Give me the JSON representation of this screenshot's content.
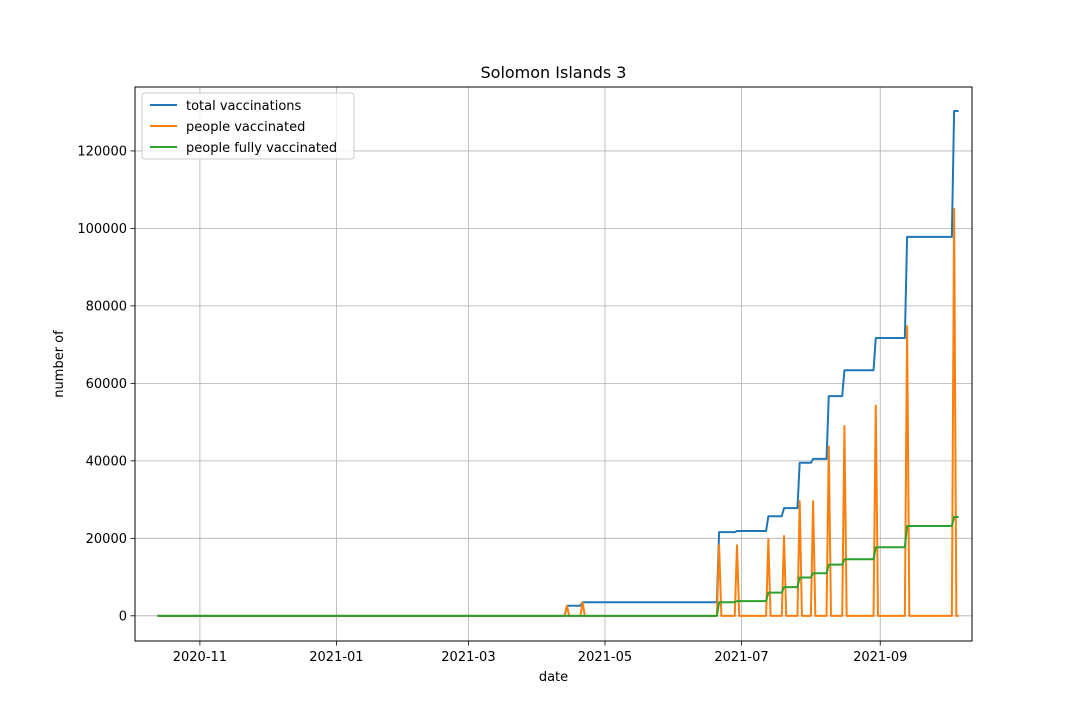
{
  "chart_data": {
    "type": "line",
    "title": "Solomon Islands 3",
    "xlabel": "date",
    "ylabel": "number of",
    "x_type": "date",
    "xlim": [
      "2020-10-03",
      "2021-10-12"
    ],
    "ylim": [
      -6500,
      136500
    ],
    "x_ticks": [
      "2020-11-01",
      "2021-01-01",
      "2021-03-01",
      "2021-05-01",
      "2021-07-01",
      "2021-09-01"
    ],
    "x_tick_labels": [
      "2020-11",
      "2021-01",
      "2021-03",
      "2021-05",
      "2021-07",
      "2021-09"
    ],
    "y_ticks": [
      0,
      20000,
      40000,
      60000,
      80000,
      100000,
      120000
    ],
    "y_tick_labels": [
      "0",
      "20000",
      "40000",
      "60000",
      "80000",
      "100000",
      "120000"
    ],
    "grid": true,
    "legend_position": "upper left",
    "series": [
      {
        "name": "total vaccinations",
        "color": "#1f77b4",
        "points": [
          [
            "2020-10-13",
            0
          ],
          [
            "2021-04-13",
            0
          ],
          [
            "2021-04-14",
            2600
          ],
          [
            "2021-04-20",
            2600
          ],
          [
            "2021-04-21",
            3500
          ],
          [
            "2021-06-20",
            3500
          ],
          [
            "2021-06-21",
            21600
          ],
          [
            "2021-06-28",
            21600
          ],
          [
            "2021-06-29",
            21900
          ],
          [
            "2021-07-12",
            21900
          ],
          [
            "2021-07-13",
            25700
          ],
          [
            "2021-07-19",
            25700
          ],
          [
            "2021-07-20",
            27800
          ],
          [
            "2021-07-26",
            27800
          ],
          [
            "2021-07-27",
            39500
          ],
          [
            "2021-08-01",
            39500
          ],
          [
            "2021-08-02",
            40500
          ],
          [
            "2021-08-08",
            40500
          ],
          [
            "2021-08-09",
            56700
          ],
          [
            "2021-08-15",
            56700
          ],
          [
            "2021-08-16",
            63400
          ],
          [
            "2021-08-29",
            63400
          ],
          [
            "2021-08-30",
            71700
          ],
          [
            "2021-09-12",
            71700
          ],
          [
            "2021-09-13",
            97800
          ],
          [
            "2021-10-03",
            97800
          ],
          [
            "2021-10-04",
            130300
          ],
          [
            "2021-10-06",
            130300
          ]
        ]
      },
      {
        "name": "people vaccinated",
        "color": "#ff7f0e",
        "points": [
          [
            "2020-10-13",
            0
          ],
          [
            "2021-04-13",
            0
          ],
          [
            "2021-04-14",
            2600
          ],
          [
            "2021-04-15",
            0
          ],
          [
            "2021-04-20",
            0
          ],
          [
            "2021-04-21",
            3500
          ],
          [
            "2021-04-22",
            0
          ],
          [
            "2021-06-20",
            0
          ],
          [
            "2021-06-21",
            18200
          ],
          [
            "2021-06-22",
            0
          ],
          [
            "2021-06-28",
            0
          ],
          [
            "2021-06-29",
            18200
          ],
          [
            "2021-06-30",
            0
          ],
          [
            "2021-07-12",
            0
          ],
          [
            "2021-07-13",
            19800
          ],
          [
            "2021-07-14",
            0
          ],
          [
            "2021-07-19",
            0
          ],
          [
            "2021-07-20",
            20600
          ],
          [
            "2021-07-21",
            0
          ],
          [
            "2021-07-26",
            0
          ],
          [
            "2021-07-27",
            29600
          ],
          [
            "2021-07-28",
            0
          ],
          [
            "2021-08-01",
            0
          ],
          [
            "2021-08-02",
            29600
          ],
          [
            "2021-08-03",
            0
          ],
          [
            "2021-08-08",
            0
          ],
          [
            "2021-08-09",
            43700
          ],
          [
            "2021-08-10",
            0
          ],
          [
            "2021-08-15",
            0
          ],
          [
            "2021-08-16",
            49000
          ],
          [
            "2021-08-17",
            0
          ],
          [
            "2021-08-29",
            0
          ],
          [
            "2021-08-30",
            54300
          ],
          [
            "2021-08-31",
            0
          ],
          [
            "2021-09-12",
            0
          ],
          [
            "2021-09-13",
            74800
          ],
          [
            "2021-09-14",
            0
          ],
          [
            "2021-10-03",
            0
          ],
          [
            "2021-10-04",
            105000
          ],
          [
            "2021-10-05",
            0
          ],
          [
            "2021-10-06",
            0
          ]
        ]
      },
      {
        "name": "people fully vaccinated",
        "color": "#2ca02c",
        "points": [
          [
            "2020-10-13",
            0
          ],
          [
            "2021-06-20",
            0
          ],
          [
            "2021-06-21",
            3500
          ],
          [
            "2021-06-28",
            3500
          ],
          [
            "2021-06-29",
            3800
          ],
          [
            "2021-07-12",
            3800
          ],
          [
            "2021-07-13",
            6000
          ],
          [
            "2021-07-19",
            6000
          ],
          [
            "2021-07-20",
            7400
          ],
          [
            "2021-07-26",
            7400
          ],
          [
            "2021-07-27",
            9900
          ],
          [
            "2021-08-01",
            9900
          ],
          [
            "2021-08-02",
            11000
          ],
          [
            "2021-08-08",
            11000
          ],
          [
            "2021-08-09",
            13200
          ],
          [
            "2021-08-15",
            13200
          ],
          [
            "2021-08-16",
            14600
          ],
          [
            "2021-08-29",
            14600
          ],
          [
            "2021-08-30",
            17700
          ],
          [
            "2021-09-12",
            17700
          ],
          [
            "2021-09-13",
            23200
          ],
          [
            "2021-10-03",
            23200
          ],
          [
            "2021-10-04",
            25500
          ],
          [
            "2021-10-06",
            25500
          ]
        ]
      }
    ]
  }
}
